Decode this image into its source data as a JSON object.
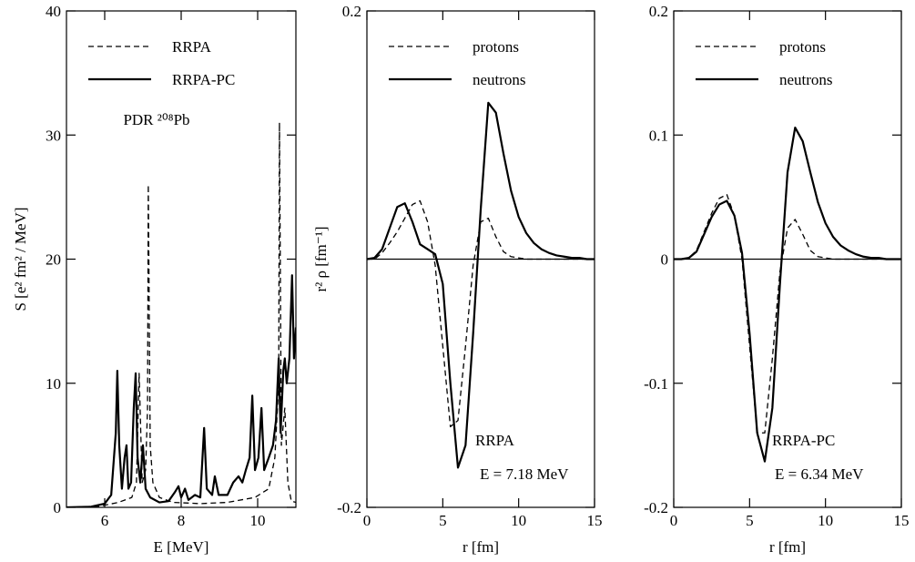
{
  "chart_data": [
    {
      "type": "line",
      "xlabel": "E [MeV]",
      "ylabel": "S [e² fm² / MeV]",
      "xlim": [
        5,
        11
      ],
      "ylim": [
        0,
        40
      ],
      "xticks": [
        6,
        8,
        10
      ],
      "yticks": [
        0,
        10,
        20,
        30,
        40
      ],
      "legend": "upper left",
      "annotations": [
        "PDR ²⁰⁸Pb"
      ],
      "series": [
        {
          "name": "RRPA",
          "color": "#000000",
          "linestyle": "dashed",
          "x": [
            5.0,
            5.88,
            6.36,
            6.71,
            6.83,
            6.9,
            6.98,
            7.07,
            7.12,
            7.14,
            7.19,
            7.26,
            7.43,
            7.79,
            8.5,
            9.21,
            9.93,
            10.29,
            10.45,
            10.55,
            10.57,
            10.62,
            10.71,
            10.79,
            10.88,
            11.0
          ],
          "values": [
            0,
            0.1,
            0.4,
            0.8,
            2,
            10.8,
            2,
            3,
            8,
            26,
            5,
            2,
            0.8,
            0.4,
            0.3,
            0.4,
            0.8,
            1.5,
            4,
            10,
            31,
            5,
            8,
            2,
            0.5,
            0.4
          ]
        },
        {
          "name": "RRPA-PC",
          "color": "#000000",
          "linestyle": "solid",
          "x": [
            5.0,
            5.64,
            6.0,
            6.17,
            6.29,
            6.33,
            6.38,
            6.45,
            6.52,
            6.57,
            6.62,
            6.69,
            6.76,
            6.81,
            6.86,
            6.93,
            7.0,
            7.07,
            7.19,
            7.43,
            7.67,
            7.83,
            7.93,
            8.0,
            8.1,
            8.19,
            8.36,
            8.5,
            8.6,
            8.67,
            8.81,
            8.88,
            8.98,
            9.21,
            9.36,
            9.5,
            9.6,
            9.69,
            9.79,
            9.86,
            9.93,
            10.02,
            10.1,
            10.17,
            10.29,
            10.4,
            10.48,
            10.55,
            10.6,
            10.67,
            10.71,
            10.76,
            10.83,
            10.9,
            10.95,
            11.0
          ],
          "values": [
            0,
            0.05,
            0.3,
            1,
            6,
            11,
            5,
            1.5,
            4,
            5,
            1.5,
            2,
            8,
            10.8,
            4,
            2,
            5,
            1.5,
            0.8,
            0.4,
            0.5,
            1.2,
            1.7,
            0.8,
            1.5,
            0.6,
            1,
            0.8,
            6.4,
            1.5,
            1,
            2.5,
            1,
            1,
            2,
            2.5,
            2,
            3,
            4,
            9,
            3,
            4,
            8,
            3,
            4,
            5,
            7,
            12,
            6,
            11,
            12,
            10,
            12,
            18.7,
            12,
            14.5
          ]
        }
      ]
    },
    {
      "type": "line",
      "xlabel": "r [fm]",
      "ylabel": "r² ρ [fm⁻¹]",
      "xlim": [
        0,
        15
      ],
      "ylim": [
        -0.2,
        0.2
      ],
      "xticks": [
        0,
        5,
        10,
        15
      ],
      "yticks": [
        -0.2,
        0.2
      ],
      "legend": "upper left",
      "annotations": [
        "RRPA",
        "E = 7.18 MeV"
      ],
      "x": [
        0,
        0.5,
        1,
        1.5,
        2,
        2.5,
        3,
        3.5,
        4,
        4.5,
        5,
        5.5,
        6,
        6.5,
        7,
        7.5,
        8,
        8.5,
        9,
        9.5,
        10,
        10.5,
        11,
        11.5,
        12,
        12.5,
        13,
        13.5,
        14,
        14.5,
        15
      ],
      "series": [
        {
          "name": "protons",
          "color": "#000000",
          "linestyle": "dashed",
          "values": [
            0,
            0,
            0.005,
            0.013,
            0.022,
            0.033,
            0.044,
            0.047,
            0.03,
            -0.005,
            -0.07,
            -0.135,
            -0.13,
            -0.07,
            -0.005,
            0.03,
            0.033,
            0.018,
            0.006,
            0.002,
            0.001,
            0,
            0,
            0,
            0,
            0,
            0,
            0,
            0,
            0,
            0
          ]
        },
        {
          "name": "neutrons",
          "color": "#000000",
          "linestyle": "solid",
          "values": [
            0,
            0.001,
            0.008,
            0.025,
            0.042,
            0.045,
            0.03,
            0.012,
            0.008,
            0.004,
            -0.02,
            -0.1,
            -0.168,
            -0.15,
            -0.06,
            0.04,
            0.126,
            0.118,
            0.085,
            0.055,
            0.034,
            0.021,
            0.013,
            0.008,
            0.005,
            0.003,
            0.002,
            0.001,
            0.001,
            0,
            0
          ]
        }
      ]
    },
    {
      "type": "line",
      "xlabel": "r [fm]",
      "xlim": [
        0,
        15
      ],
      "ylim": [
        -0.2,
        0.2
      ],
      "xticks": [
        0,
        5,
        10,
        15
      ],
      "yticks": [
        -0.2,
        -0.1,
        0,
        0.1,
        0.2
      ],
      "legend": "upper left",
      "annotations": [
        "RRPA-PC",
        "E = 6.34 MeV"
      ],
      "x": [
        0,
        0.5,
        1,
        1.5,
        2,
        2.5,
        3,
        3.5,
        4,
        4.5,
        5,
        5.5,
        6,
        6.5,
        7,
        7.5,
        8,
        8.5,
        9,
        9.5,
        10,
        10.5,
        11,
        11.5,
        12,
        12.5,
        13,
        13.5,
        14,
        14.5,
        15
      ],
      "series": [
        {
          "name": "protons",
          "color": "#000000",
          "linestyle": "dashed",
          "values": [
            0,
            0,
            0.001,
            0.007,
            0.022,
            0.037,
            0.049,
            0.052,
            0.035,
            0,
            -0.07,
            -0.14,
            -0.14,
            -0.08,
            -0.01,
            0.025,
            0.032,
            0.02,
            0.007,
            0.002,
            0.001,
            0,
            0,
            0,
            0,
            0,
            0,
            0,
            0,
            0,
            0
          ]
        },
        {
          "name": "neutrons",
          "color": "#000000",
          "linestyle": "solid",
          "values": [
            0,
            0,
            0.001,
            0.006,
            0.02,
            0.034,
            0.044,
            0.047,
            0.035,
            0.005,
            -0.06,
            -0.14,
            -0.163,
            -0.12,
            -0.02,
            0.07,
            0.106,
            0.095,
            0.07,
            0.046,
            0.029,
            0.018,
            0.011,
            0.007,
            0.004,
            0.002,
            0.001,
            0.001,
            0,
            0,
            0
          ]
        }
      ]
    }
  ]
}
